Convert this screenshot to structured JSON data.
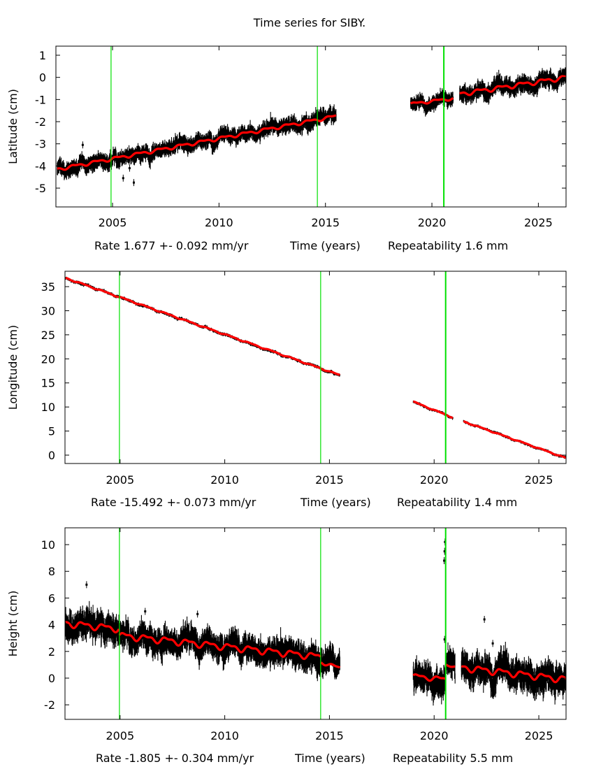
{
  "title": "Time series for SIBY.",
  "colors": {
    "data": "#000000",
    "model": "#ff0000",
    "offset_line": "#00e000",
    "frame": "#000000"
  },
  "chart_data": [
    {
      "type": "scatter",
      "ylabel": "Latitude (cm)",
      "xlabel_parts": {
        "rate": "Rate 1.677 +- 0.092 mm/yr",
        "time": "Time (years)",
        "repeatability": "Repeatability 1.6 mm"
      },
      "xlim": [
        2002.34,
        2026.3
      ],
      "ylim": [
        -5.85,
        1.41
      ],
      "xticks": [
        2005,
        2010,
        2015,
        2020,
        2025
      ],
      "xtick_labels": [
        "2005",
        "2010",
        "2015",
        "2020",
        "2025"
      ],
      "yticks": [
        1,
        0,
        -1,
        -2,
        -3,
        -4,
        -5
      ],
      "ytick_labels": [
        "1",
        "0",
        "-1",
        "-2",
        "-3",
        "-4",
        "-5"
      ],
      "offset_lines": [
        2004.93,
        2014.62,
        2020.56
      ],
      "segments": [
        {
          "start": 2002.4,
          "end": 2015.5,
          "model_start": -4.15,
          "model_end": -1.75,
          "noise": 0.28,
          "seasonal": 0.06
        },
        {
          "start": 2019.0,
          "end": 2021.0,
          "model_start": -1.2,
          "model_end": -0.95,
          "noise": 0.25,
          "seasonal": 0.05
        },
        {
          "start": 2021.3,
          "end": 2026.3,
          "model_start": -0.75,
          "model_end": 0.0,
          "noise": 0.3,
          "seasonal": 0.08
        }
      ],
      "outliers": [
        [
          2003.6,
          -3.05
        ],
        [
          2005.5,
          -4.55
        ],
        [
          2006.0,
          -4.75
        ],
        [
          2005.8,
          -4.1
        ]
      ],
      "grid": false
    },
    {
      "type": "scatter",
      "ylabel": "Longitude (cm)",
      "xlabel_parts": {
        "rate": "Rate -15.492 +- 0.073 mm/yr",
        "time": "Time (years)",
        "repeatability": "Repeatability 1.4 mm"
      },
      "xlim": [
        2002.37,
        2026.3
      ],
      "ylim": [
        -1.74,
        38.2
      ],
      "xticks": [
        2005,
        2010,
        2015,
        2020,
        2025
      ],
      "xtick_labels": [
        "2005",
        "2010",
        "2015",
        "2020",
        "2025"
      ],
      "yticks": [
        35,
        30,
        25,
        20,
        15,
        10,
        5,
        0
      ],
      "ytick_labels": [
        "35",
        "30",
        "25",
        "20",
        "15",
        "10",
        "5",
        "0"
      ],
      "offset_lines": [
        2004.97,
        2014.58,
        2020.55
      ],
      "segments": [
        {
          "start": 2002.4,
          "end": 2015.5,
          "model_start": 36.8,
          "model_end": 16.6,
          "noise": 0.25,
          "seasonal": 0.1
        },
        {
          "start": 2019.0,
          "end": 2020.9,
          "model_start": 11.1,
          "model_end": 7.8,
          "noise": 0.22,
          "seasonal": 0.08
        },
        {
          "start": 2021.4,
          "end": 2026.3,
          "model_start": 7.0,
          "model_end": -0.6,
          "noise": 0.22,
          "seasonal": 0.08
        }
      ],
      "outliers": [],
      "grid": false
    },
    {
      "type": "scatter",
      "ylabel": "Height (cm)",
      "xlabel_parts": {
        "rate": "Rate -1.805 +- 0.304 mm/yr",
        "time": "Time (years)",
        "repeatability": "Repeatability 5.5 mm"
      },
      "xlim": [
        2002.37,
        2026.3
      ],
      "ylim": [
        -3.09,
        11.26
      ],
      "xticks": [
        2005,
        2010,
        2015,
        2020,
        2025
      ],
      "xtick_labels": [
        "2005",
        "2010",
        "2015",
        "2020",
        "2025"
      ],
      "yticks": [
        10,
        8,
        6,
        4,
        2,
        0,
        -2
      ],
      "ytick_labels": [
        "10",
        "8",
        "6",
        "4",
        "2",
        "0",
        "-2"
      ],
      "offset_lines": [
        2004.97,
        2014.58,
        2020.55
      ],
      "segments": [
        {
          "start": 2002.4,
          "end": 2004.95,
          "model_start": 4.1,
          "model_end": 3.7,
          "noise": 0.85,
          "seasonal": 0.2
        },
        {
          "start": 2004.97,
          "end": 2014.58,
          "model_start": 3.2,
          "model_end": 1.6,
          "noise": 0.8,
          "seasonal": 0.2
        },
        {
          "start": 2014.6,
          "end": 2015.5,
          "model_start": 1.2,
          "model_end": 0.75,
          "noise": 0.75,
          "seasonal": 0.1
        },
        {
          "start": 2019.0,
          "end": 2020.55,
          "model_start": 0.15,
          "model_end": -0.1,
          "noise": 0.85,
          "seasonal": 0.15
        },
        {
          "start": 2020.56,
          "end": 2021.0,
          "model_start": 1.0,
          "model_end": 0.85,
          "noise": 0.8,
          "seasonal": 0.05
        },
        {
          "start": 2021.3,
          "end": 2026.3,
          "model_start": 0.8,
          "model_end": -0.1,
          "noise": 0.9,
          "seasonal": 0.2
        }
      ],
      "outliers": [
        [
          2020.5,
          9.5
        ],
        [
          2020.52,
          10.2
        ],
        [
          2020.48,
          8.8
        ],
        [
          2020.5,
          2.9
        ],
        [
          2022.4,
          4.4
        ],
        [
          2022.8,
          2.6
        ],
        [
          2003.4,
          7.0
        ],
        [
          2008.7,
          4.8
        ],
        [
          2006.2,
          5.0
        ]
      ],
      "grid": false
    }
  ]
}
